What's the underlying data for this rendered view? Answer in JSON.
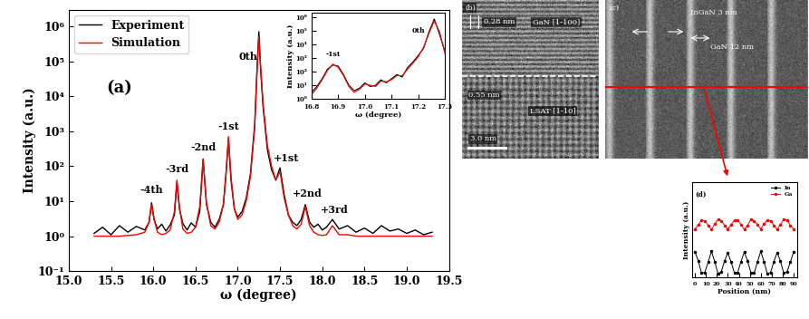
{
  "chart_data": [
    {
      "type": "line",
      "x_label": "ω (degree)",
      "y_label": "Intensity (a.u.)",
      "panel": {
        "text": "(a)",
        "x": 15.6,
        "y": 10000
      },
      "x": [
        15.3,
        15.4,
        15.5,
        15.6,
        15.7,
        15.8,
        15.9,
        15.95,
        15.98,
        16.01,
        16.05,
        16.1,
        16.15,
        16.2,
        16.25,
        16.28,
        16.31,
        16.35,
        16.4,
        16.45,
        16.5,
        16.55,
        16.59,
        16.63,
        16.68,
        16.73,
        16.78,
        16.83,
        16.86,
        16.89,
        16.92,
        16.96,
        17.0,
        17.05,
        17.1,
        17.15,
        17.2,
        17.23,
        17.25,
        17.27,
        17.3,
        17.35,
        17.4,
        17.45,
        17.5,
        17.55,
        17.6,
        17.65,
        17.7,
        17.75,
        17.8,
        17.85,
        17.9,
        17.95,
        18.0,
        18.05,
        18.12,
        18.2,
        18.3,
        18.4,
        18.5,
        18.6,
        18.7,
        18.8,
        18.9,
        19.0,
        19.1,
        19.2,
        19.3
      ],
      "series": [
        {
          "name": "Experiment",
          "color": "#000000",
          "values": [
            1.2,
            1.8,
            1.1,
            2.0,
            1.3,
            1.9,
            1.5,
            2.5,
            9,
            3,
            1.6,
            2.2,
            1.4,
            2.1,
            4,
            35,
            6,
            2.3,
            1.5,
            2.4,
            1.8,
            5,
            160,
            8,
            2.5,
            1.8,
            3,
            8,
            60,
            600,
            40,
            6,
            3.5,
            5,
            12,
            60,
            1500,
            80000,
            700000,
            60000,
            5000,
            300,
            80,
            40,
            90,
            15,
            4,
            2.5,
            2,
            3,
            8,
            2.5,
            1.8,
            2.2,
            1.5,
            1.8,
            3,
            1.6,
            2.0,
            1.3,
            1.7,
            1.2,
            2.0,
            1.4,
            1.6,
            1.2,
            1.5,
            1.1,
            1.3
          ]
        },
        {
          "name": "Simulation",
          "color": "#ff0000",
          "values": [
            1,
            1,
            1,
            1,
            1.05,
            1.1,
            1.3,
            2.5,
            8,
            3,
            1.3,
            1.1,
            1.2,
            1.5,
            5,
            40,
            7,
            1.6,
            1.2,
            1.3,
            1.8,
            7,
            150,
            9,
            2.0,
            1.6,
            2.5,
            8,
            50,
            700,
            50,
            6,
            3,
            4,
            10,
            50,
            1200,
            60000,
            500000,
            80000,
            6000,
            400,
            100,
            40,
            70,
            12,
            4,
            2,
            1.6,
            2.2,
            7,
            2,
            1.3,
            1.1,
            1.05,
            1.1,
            2,
            1.1,
            1.1,
            1,
            1,
            1,
            1,
            1,
            1,
            1,
            1,
            1,
            1
          ]
        }
      ],
      "xlim": [
        15.0,
        19.5
      ],
      "ylim": [
        0.1,
        3000000
      ],
      "xticks": [
        15.0,
        15.5,
        16.0,
        16.5,
        17.0,
        17.5,
        18.0,
        18.5,
        19.0,
        19.5
      ],
      "yticks": [
        {
          "value": 0.1,
          "label": "10⁻¹"
        },
        {
          "value": 1,
          "label": "10⁰"
        },
        {
          "value": 10,
          "label": "10¹"
        },
        {
          "value": 100,
          "label": "10²"
        },
        {
          "value": 1000,
          "label": "10³"
        },
        {
          "value": 10000,
          "label": "10⁴"
        },
        {
          "value": 100000,
          "label": "10⁵"
        },
        {
          "value": 1000000,
          "label": "10⁶"
        }
      ],
      "log": "y",
      "legend": "upper left",
      "annotations": [
        {
          "text": "-4th",
          "x": 15.98,
          "y": 15
        },
        {
          "text": "-3rd",
          "x": 16.28,
          "y": 60
        },
        {
          "text": "-2nd",
          "x": 16.59,
          "y": 250
        },
        {
          "text": "-1st",
          "x": 16.89,
          "y": 1000
        },
        {
          "text": "0th",
          "x": 17.12,
          "y": 100000
        },
        {
          "text": "+1st",
          "x": 17.57,
          "y": 120
        },
        {
          "text": "+2nd",
          "x": 17.82,
          "y": 12
        },
        {
          "text": "+3rd",
          "x": 18.15,
          "y": 4
        }
      ]
    },
    {
      "type": "line",
      "x_label": "ω (degree)",
      "y_label": "Intensity (a.u.)",
      "x": [
        16.8,
        16.82,
        16.84,
        16.86,
        16.88,
        16.9,
        16.92,
        16.94,
        16.96,
        16.98,
        17.0,
        17.02,
        17.04,
        17.06,
        17.08,
        17.1,
        17.12,
        17.14,
        17.16,
        17.18,
        17.2,
        17.22,
        17.24,
        17.26,
        17.28,
        17.3
      ],
      "series": [
        {
          "name": "Experiment",
          "color": "#000000",
          "values": [
            3,
            8,
            30,
            150,
            300,
            250,
            60,
            10,
            4,
            6,
            15,
            8,
            10,
            25,
            15,
            30,
            60,
            40,
            200,
            500,
            1500,
            5000,
            80000,
            700000,
            50000,
            3000
          ]
        },
        {
          "name": "Simulation",
          "color": "#ff0000",
          "values": [
            2,
            6,
            25,
            120,
            350,
            200,
            50,
            8,
            3,
            5,
            12,
            10,
            8,
            20,
            18,
            25,
            50,
            50,
            150,
            400,
            1200,
            6000,
            60000,
            500000,
            80000,
            2000
          ]
        }
      ],
      "xlim": [
        16.8,
        17.3
      ],
      "ylim": [
        1,
        2000000
      ],
      "xticks": [
        16.8,
        16.9,
        17.0,
        17.1,
        17.2,
        17.3
      ],
      "yticks": [
        {
          "value": 1,
          "label": "10⁰"
        },
        {
          "value": 10,
          "label": "10¹"
        },
        {
          "value": 100,
          "label": "10²"
        },
        {
          "value": 1000,
          "label": "10³"
        },
        {
          "value": 10000,
          "label": "10⁴"
        },
        {
          "value": 100000,
          "label": "10⁵"
        },
        {
          "value": 1000000,
          "label": "10⁶"
        }
      ],
      "log": "y",
      "annotations": [
        {
          "text": "-1st",
          "x": 16.88,
          "y": 1000
        },
        {
          "text": "0th",
          "x": 17.2,
          "y": 50000
        }
      ]
    },
    {
      "type": "line",
      "x_label": "Position (nm)",
      "y_label": "Intensity (a.u.)",
      "panel": {
        "text": "(d)",
        "x": 0,
        "y": 13
      },
      "x": [
        0,
        3,
        6,
        9,
        12,
        15,
        18,
        21,
        24,
        27,
        30,
        33,
        36,
        39,
        42,
        45,
        48,
        51,
        54,
        57,
        60,
        63,
        66,
        69,
        72,
        75,
        78,
        81,
        84,
        87,
        90
      ],
      "series": [
        {
          "name": "In",
          "color": "#000000",
          "marker": "o",
          "line_style": "solid",
          "values": [
            4.0,
            2.6,
            0.7,
            0.8,
            2.4,
            4.1,
            2.5,
            0.6,
            0.9,
            2.6,
            3.9,
            2.4,
            0.7,
            0.8,
            2.5,
            4.0,
            2.6,
            0.8,
            0.7,
            2.4,
            4.1,
            2.5,
            0.6,
            0.8,
            2.5,
            3.9,
            2.6,
            0.7,
            0.9,
            2.4,
            4.0
          ]
        },
        {
          "name": "Ga",
          "color": "#ff0000",
          "marker": "o",
          "line_style": "solid",
          "values": [
            7.6,
            8.3,
            9.0,
            8.9,
            8.2,
            7.5,
            8.4,
            9.1,
            8.9,
            8.2,
            7.6,
            8.3,
            9.0,
            9.0,
            8.3,
            7.5,
            8.2,
            9.1,
            8.9,
            8.3,
            7.6,
            8.4,
            9.0,
            8.9,
            8.2,
            7.5,
            8.3,
            9.1,
            9.0,
            8.2,
            7.6
          ]
        }
      ],
      "xlim": [
        -3,
        93
      ],
      "ylim": [
        0,
        15
      ],
      "xticks": [
        0,
        10,
        20,
        30,
        40,
        50,
        60,
        70,
        80,
        90
      ],
      "tick_labels": "x",
      "legend": "upper right"
    }
  ],
  "images": {
    "tem": {
      "label": "(b)",
      "top_spacing": "0.28 nm",
      "top_layer": "GaN [1-100]",
      "bottom_spacing": "0.55 nm",
      "bottom_layer": "LSAT [1-10]",
      "scale_bar": "3.0 nm"
    },
    "stem": {
      "label": "(c)",
      "well": "InGaN 3 nm",
      "barrier": "GaN 12 nm"
    }
  }
}
